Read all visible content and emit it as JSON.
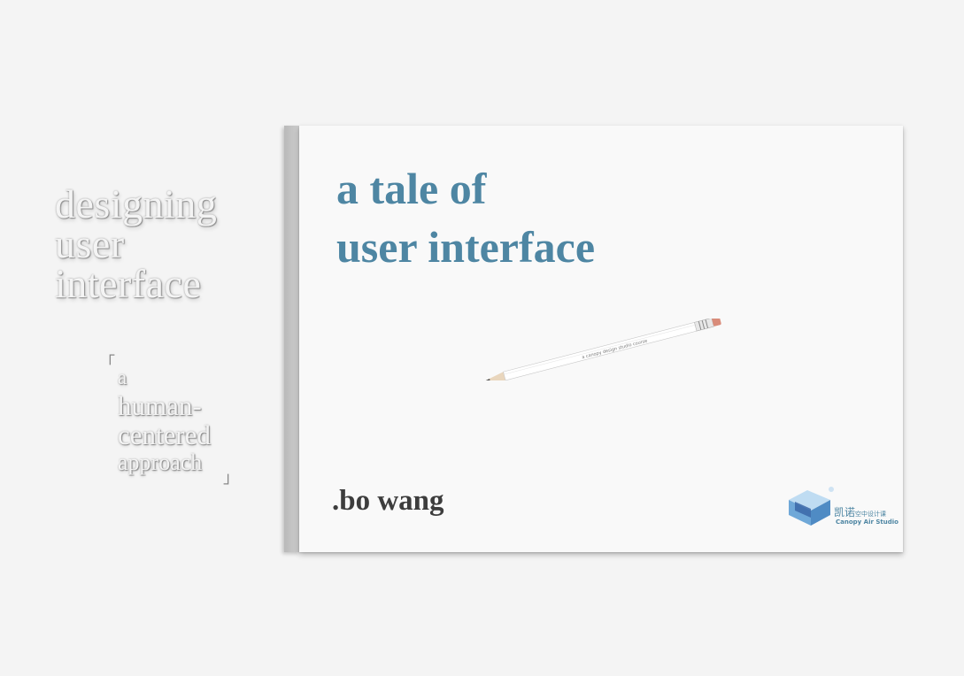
{
  "left_panel": {
    "title_lines": [
      "designing",
      "user",
      "interface"
    ],
    "subtitle_lines": [
      "a",
      "human-",
      "centered",
      "approach"
    ],
    "bracket_open": "「",
    "bracket_close": "」"
  },
  "card": {
    "title_lines": [
      "a tale of",
      "user interface"
    ],
    "pencil_text": "a canopy design studio course",
    "author": ".bo wang",
    "logo": {
      "icon": "canopy-air-studio-logo-icon",
      "name_cn": "凯诺",
      "name_cn_small": "空中设计课",
      "name_en": "Canopy Air Studio"
    }
  },
  "colors": {
    "background": "#f4f4f4",
    "card": "#f9f9f9",
    "title_blue": "#4e86a3",
    "author": "#3d3d3d",
    "embossed_text": "#8f8f8f"
  }
}
